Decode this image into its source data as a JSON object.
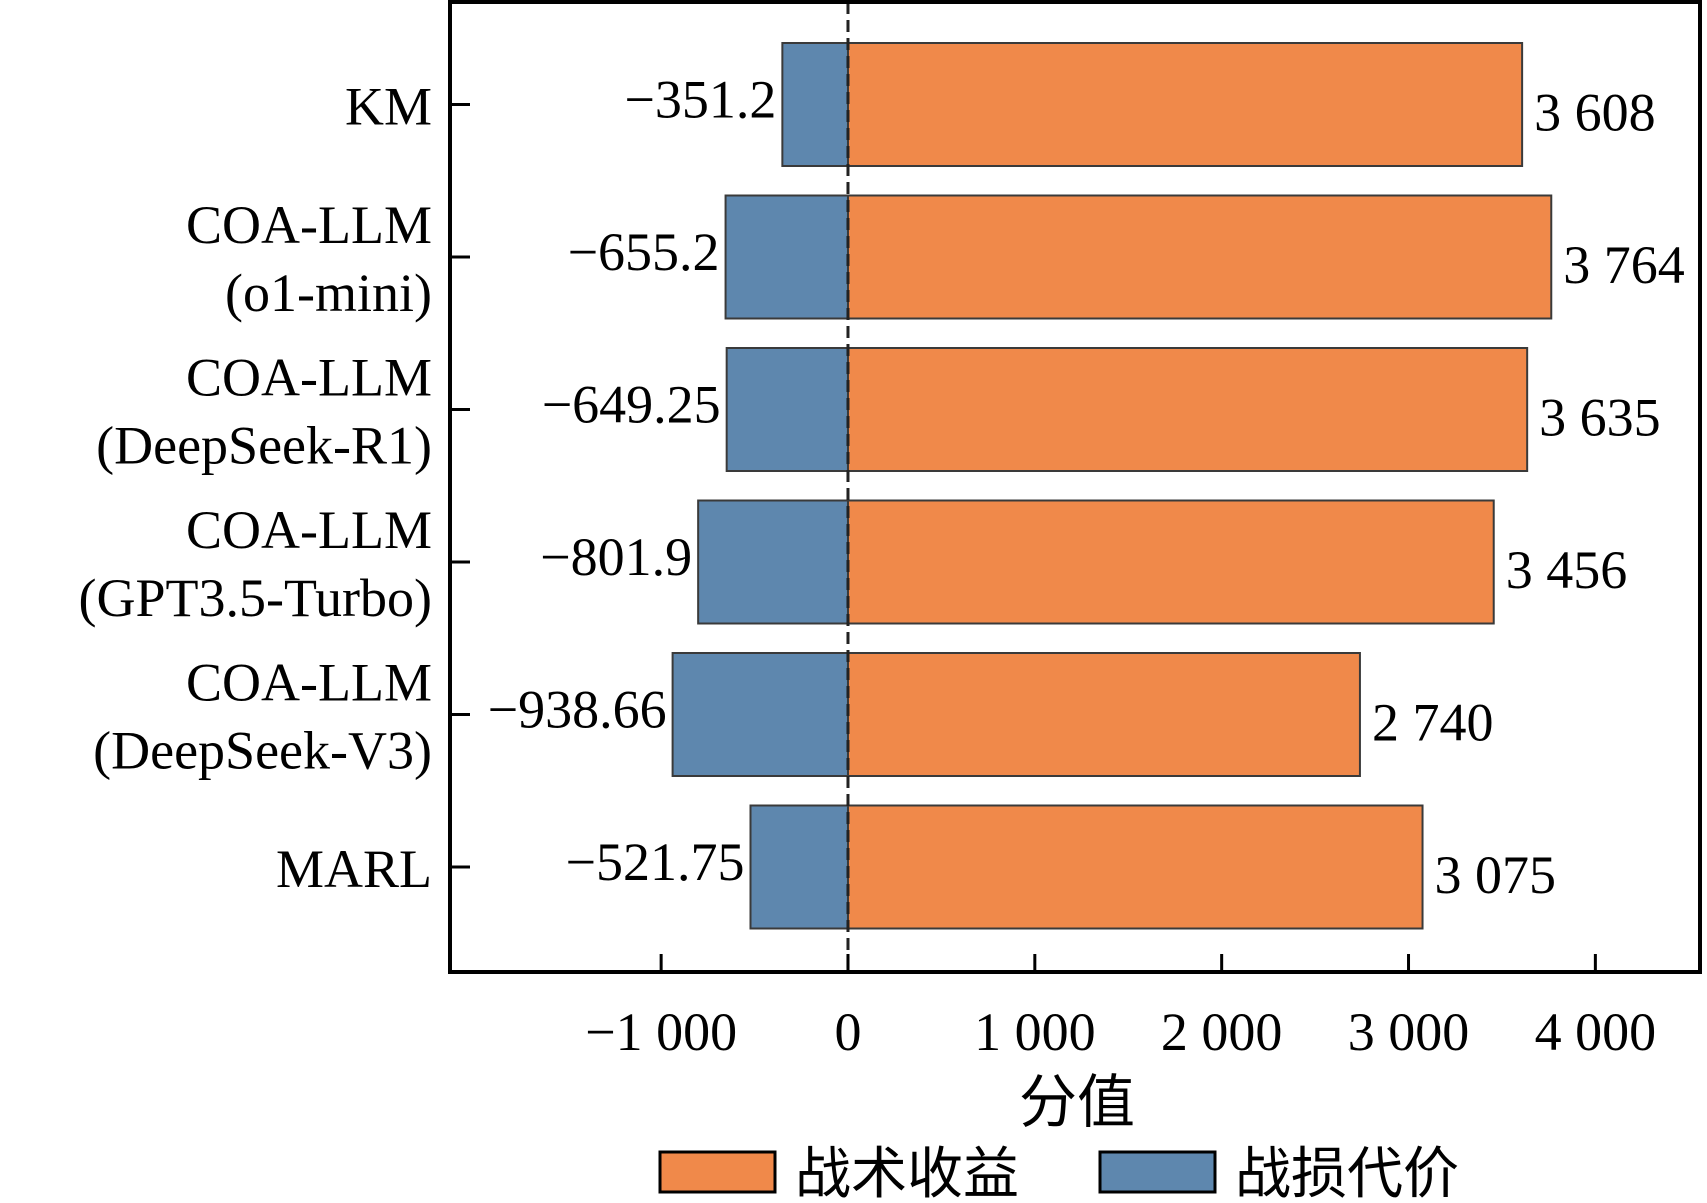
{
  "chart_data": {
    "type": "bar",
    "orientation": "horizontal",
    "categories": [
      [
        "KM"
      ],
      [
        "COA-LLM",
        "(o1-mini)"
      ],
      [
        "COA-LLM",
        "(DeepSeek-R1)"
      ],
      [
        "COA-LLM",
        "(GPT3.5-Turbo)"
      ],
      [
        "COA-LLM",
        "(DeepSeek-V3)"
      ],
      [
        "MARL"
      ]
    ],
    "series": [
      {
        "name": "战术收益",
        "color": "#F0894A",
        "values": [
          3608,
          3764,
          3635,
          3456,
          2740,
          3075
        ],
        "labels": [
          "3 608",
          "3 764",
          "3 635",
          "3 456",
          "2 740",
          "3 075"
        ]
      },
      {
        "name": "战损代价",
        "color": "#5E87AE",
        "values": [
          -351.2,
          -655.2,
          -649.25,
          -801.9,
          -938.66,
          -521.75
        ],
        "labels": [
          "−351.2",
          "−655.2",
          "−649.25",
          "−801.9",
          "−938.66",
          "−521.75"
        ]
      }
    ],
    "xlabel": "分值",
    "ylabel": "",
    "xlim": [
      -2130,
      4560
    ],
    "xticks": [
      -1000,
      0,
      1000,
      2000,
      3000,
      4000
    ],
    "xtick_labels": [
      "−1 000",
      "0",
      "1 000",
      "2 000",
      "3 000",
      "4 000"
    ],
    "zero_line": "dashed",
    "grid": false,
    "legend_position": "bottom"
  }
}
